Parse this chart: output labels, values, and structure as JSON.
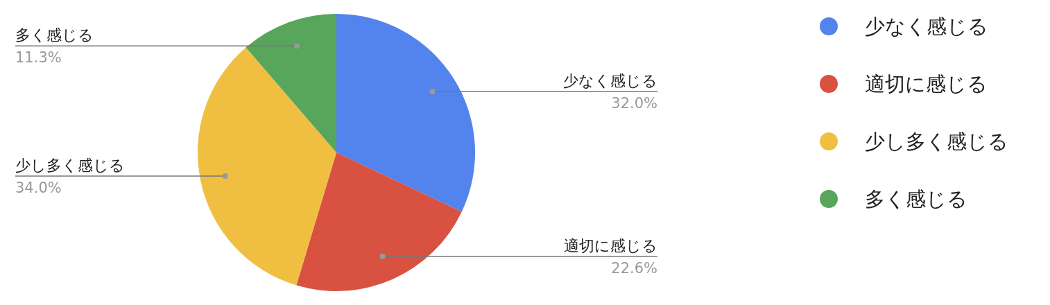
{
  "chart_data": {
    "type": "pie",
    "categories": [
      "少なく感じる",
      "適切に感じる",
      "少し多く感じる",
      "多く感じる"
    ],
    "values": [
      32.0,
      22.6,
      34.0,
      11.3
    ],
    "colors": [
      "#5383ec",
      "#d95140",
      "#f0bf42",
      "#58a55c"
    ],
    "value_labels": [
      "32.0%",
      "22.6%",
      "34.0%",
      "11.3%"
    ],
    "legend": "right"
  }
}
